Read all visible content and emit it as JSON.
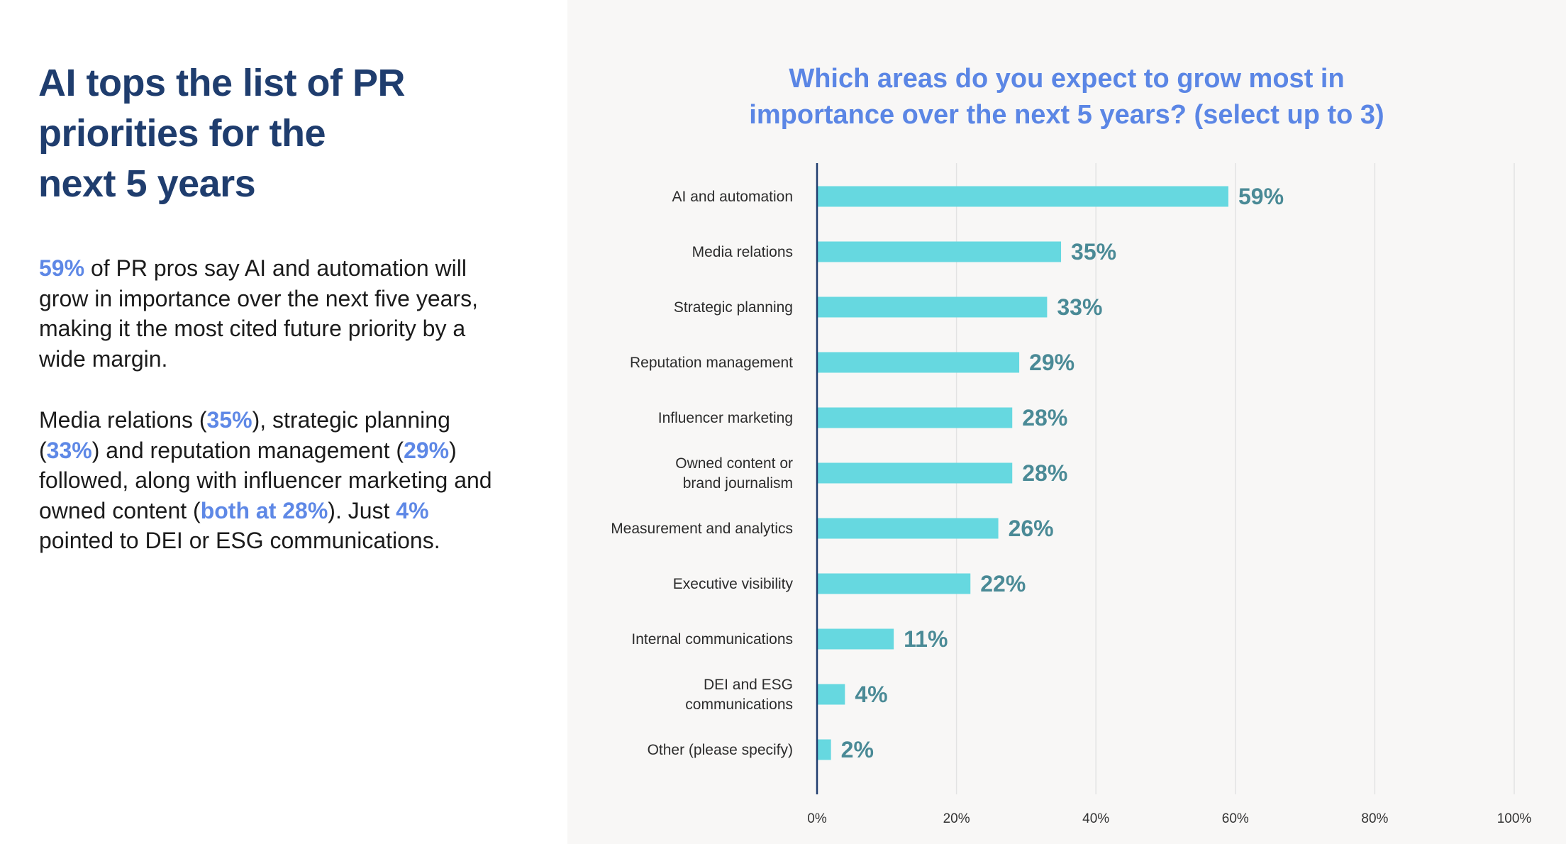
{
  "left": {
    "headline": [
      "AI tops the list of PR",
      "priorities for the",
      "next 5 years"
    ],
    "paragraph1": [
      {
        "text": "59%",
        "highlight": true
      },
      {
        "text": " of PR pros say AI and automation will grow in importance over the next five years, making it the most cited future priority by a wide margin.",
        "highlight": false
      }
    ],
    "paragraph2": [
      {
        "text": "Media relations (",
        "highlight": false
      },
      {
        "text": "35%",
        "highlight": true
      },
      {
        "text": "), strategic planning (",
        "highlight": false
      },
      {
        "text": "33%",
        "highlight": true
      },
      {
        "text": ") and reputation management (",
        "highlight": false
      },
      {
        "text": "29%",
        "highlight": true
      },
      {
        "text": ") followed, along with influencer marketing and owned content (",
        "highlight": false
      },
      {
        "text": "both at 28%",
        "highlight": true
      },
      {
        "text": "). Just ",
        "highlight": false
      },
      {
        "text": "4%",
        "highlight": true
      },
      {
        "text": " pointed to DEI or ESG communications.",
        "highlight": false
      }
    ]
  },
  "chart_data": {
    "type": "bar",
    "orientation": "horizontal",
    "title": [
      "Which areas do you expect to grow most in",
      "importance over the next 5 years? (select up to 3)"
    ],
    "categories": [
      [
        "AI and automation"
      ],
      [
        "Media relations"
      ],
      [
        "Strategic planning"
      ],
      [
        "Reputation management"
      ],
      [
        "Influencer marketing"
      ],
      [
        "Owned content or",
        "brand journalism"
      ],
      [
        "Measurement and analytics"
      ],
      [
        "Executive visibility"
      ],
      [
        "Internal communications"
      ],
      [
        "DEI and ESG",
        "communications"
      ],
      [
        "Other (please specify)"
      ]
    ],
    "values": [
      59,
      35,
      33,
      29,
      28,
      28,
      26,
      22,
      11,
      4,
      2
    ],
    "value_labels": [
      "59%",
      "35%",
      "33%",
      "29%",
      "28%",
      "28%",
      "26%",
      "22%",
      "11%",
      "4%",
      "2%"
    ],
    "xlim": [
      0,
      100
    ],
    "xticks": [
      0,
      20,
      40,
      60,
      80,
      100
    ],
    "xtick_labels": [
      "0%",
      "20%",
      "40%",
      "60%",
      "80%",
      "100%"
    ],
    "grid": true,
    "colors": {
      "bar": "#66d8e0",
      "value_label": "#4a8a96",
      "grid": "#e3e3e3",
      "axis": "#1f3d6e",
      "title": "#5b86e5"
    }
  }
}
